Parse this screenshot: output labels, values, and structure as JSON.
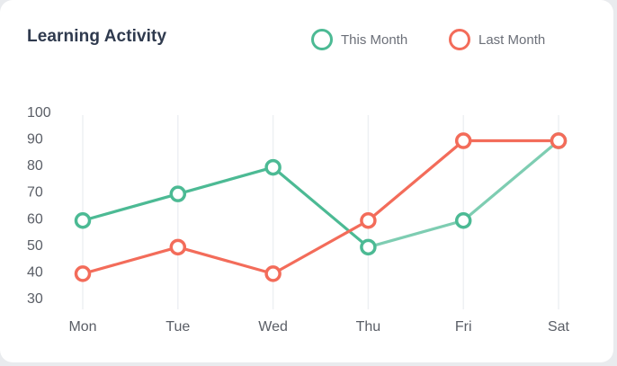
{
  "chart_data": {
    "type": "line",
    "title": "Learning Activity",
    "categories": [
      "Mon",
      "Tue",
      "Wed",
      "Thu",
      "Fri",
      "Sat"
    ],
    "yticks": [
      100,
      90,
      80,
      70,
      60,
      50,
      40,
      30
    ],
    "ylim": [
      30,
      100
    ],
    "grid": "vertical",
    "legend_position": "top-right",
    "series": [
      {
        "name": "This Month",
        "color": "#4cba94",
        "values": [
          59,
          69,
          79,
          49,
          59,
          89
        ]
      },
      {
        "name": "Last Month",
        "color": "#f36c5a",
        "values": [
          39,
          49,
          39,
          59,
          89,
          89
        ]
      }
    ]
  }
}
